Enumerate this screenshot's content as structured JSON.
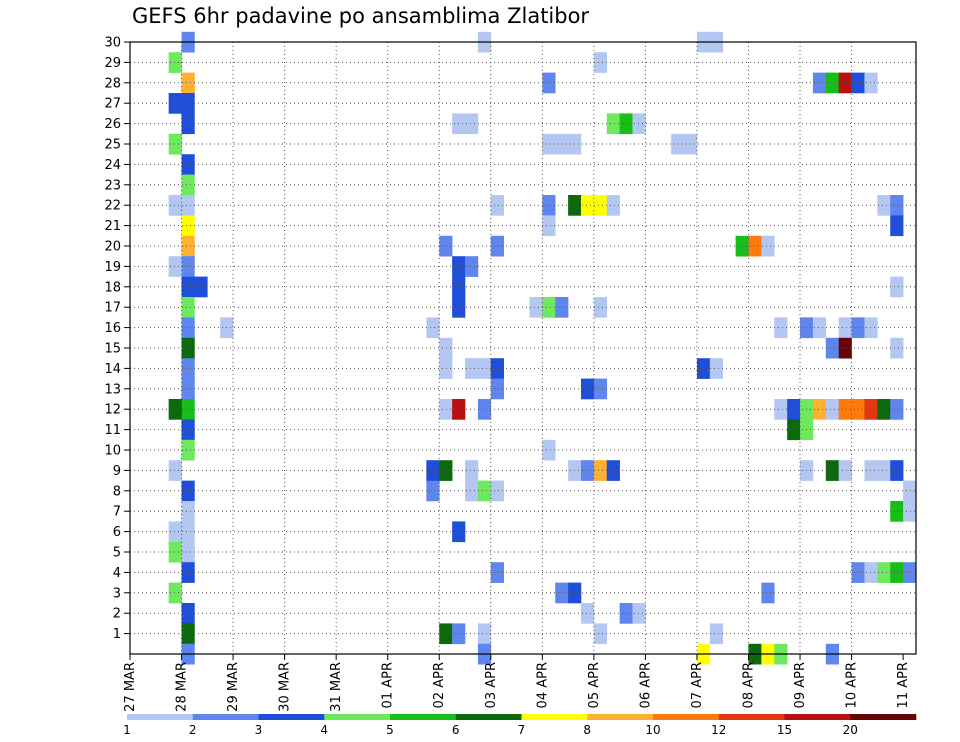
{
  "chart_data": {
    "type": "heatmap",
    "title": "GEFS 6hr padavine po ansamblima Zlatibor",
    "x_ticks": [
      "27 MAR",
      "28 MAR",
      "29 MAR",
      "30 MAR",
      "31 MAR",
      "01 APR",
      "02 APR",
      "03 APR",
      "04 APR",
      "05 APR",
      "06 APR",
      "07 APR",
      "08 APR",
      "09 APR",
      "10 APR",
      "11 APR"
    ],
    "x_range": [
      0,
      61
    ],
    "x_unit": "6-hour steps from 27 MAR 00Z",
    "y_ticks": [
      "1",
      "2",
      "3",
      "4",
      "5",
      "6",
      "7",
      "8",
      "9",
      "10",
      "11",
      "12",
      "13",
      "14",
      "15",
      "16",
      "17",
      "18",
      "19",
      "20",
      "21",
      "22",
      "23",
      "24",
      "25",
      "26",
      "27",
      "28",
      "29",
      "30"
    ],
    "y_range": [
      0,
      30
    ],
    "grid": true,
    "colorbar": {
      "labels": [
        "1",
        "2",
        "3",
        "4",
        "5",
        "6",
        "7",
        "8",
        "10",
        "12",
        "15",
        "20"
      ],
      "colors": [
        "#b4c6f2",
        "#5f86ee",
        "#1f4fd9",
        "#6ee85c",
        "#18be18",
        "#0c6a0c",
        "#ffff00",
        "#ffb030",
        "#ff7a0a",
        "#e23712",
        "#b8100f",
        "#650505"
      ]
    },
    "cells": [
      [
        4,
        30,
        1
      ],
      [
        4,
        28,
        7
      ],
      [
        4,
        27,
        2
      ],
      [
        4,
        26,
        2
      ],
      [
        4,
        24,
        2
      ],
      [
        4,
        23,
        3
      ],
      [
        4,
        22,
        0
      ],
      [
        4,
        21,
        6
      ],
      [
        4,
        20,
        7
      ],
      [
        4,
        19,
        1
      ],
      [
        4,
        18,
        2
      ],
      [
        4,
        17,
        3
      ],
      [
        4,
        16,
        1
      ],
      [
        4,
        15,
        5
      ],
      [
        4,
        14,
        1
      ],
      [
        4,
        13,
        1
      ],
      [
        4,
        12,
        4
      ],
      [
        4,
        11,
        2
      ],
      [
        4,
        10,
        3
      ],
      [
        4,
        8,
        2
      ],
      [
        4,
        7,
        0
      ],
      [
        4,
        6,
        0
      ],
      [
        4,
        5,
        0
      ],
      [
        4,
        4,
        2
      ],
      [
        4,
        2,
        2
      ],
      [
        4,
        1,
        5
      ],
      [
        4,
        0,
        1
      ],
      [
        3,
        29,
        3
      ],
      [
        3,
        27,
        2
      ],
      [
        3,
        25,
        3
      ],
      [
        3,
        22,
        0
      ],
      [
        3,
        19,
        0
      ],
      [
        3,
        12,
        5
      ],
      [
        3,
        9,
        0
      ],
      [
        3,
        6,
        0
      ],
      [
        3,
        5,
        3
      ],
      [
        3,
        3,
        3
      ],
      [
        5,
        18,
        2
      ],
      [
        7,
        16,
        0
      ],
      [
        23,
        16,
        0
      ],
      [
        23,
        8,
        1
      ],
      [
        23,
        9,
        2
      ],
      [
        24,
        15,
        0
      ],
      [
        24,
        14,
        0
      ],
      [
        24,
        12,
        0
      ],
      [
        24,
        20,
        1
      ],
      [
        24,
        9,
        5
      ],
      [
        24,
        1,
        5
      ],
      [
        25,
        26,
        0
      ],
      [
        25,
        19,
        2
      ],
      [
        25,
        18,
        2
      ],
      [
        25,
        17,
        2
      ],
      [
        25,
        12,
        10
      ],
      [
        25,
        6,
        2
      ],
      [
        25,
        1,
        1
      ],
      [
        26,
        26,
        0
      ],
      [
        26,
        19,
        1
      ],
      [
        26,
        14,
        0
      ],
      [
        26,
        9,
        0
      ],
      [
        26,
        8,
        0
      ],
      [
        27,
        30,
        0
      ],
      [
        27,
        14,
        0
      ],
      [
        27,
        12,
        1
      ],
      [
        27,
        8,
        3
      ],
      [
        27,
        1,
        0
      ],
      [
        27,
        0,
        1
      ],
      [
        28,
        22,
        0
      ],
      [
        28,
        20,
        1
      ],
      [
        28,
        14,
        2
      ],
      [
        28,
        13,
        1
      ],
      [
        28,
        8,
        0
      ],
      [
        28,
        4,
        1
      ],
      [
        31,
        17,
        0
      ],
      [
        32,
        28,
        1
      ],
      [
        32,
        25,
        0
      ],
      [
        32,
        22,
        1
      ],
      [
        32,
        21,
        0
      ],
      [
        32,
        17,
        3
      ],
      [
        32,
        10,
        0
      ],
      [
        33,
        25,
        0
      ],
      [
        33,
        17,
        1
      ],
      [
        33,
        3,
        1
      ],
      [
        34,
        25,
        0
      ],
      [
        34,
        22,
        5
      ],
      [
        34,
        9,
        0
      ],
      [
        34,
        3,
        2
      ],
      [
        35,
        22,
        6
      ],
      [
        35,
        13,
        2
      ],
      [
        35,
        9,
        1
      ],
      [
        35,
        2,
        0
      ],
      [
        36,
        29,
        0
      ],
      [
        36,
        22,
        6
      ],
      [
        36,
        17,
        0
      ],
      [
        36,
        13,
        1
      ],
      [
        36,
        9,
        7
      ],
      [
        36,
        1,
        0
      ],
      [
        37,
        26,
        3
      ],
      [
        37,
        22,
        0
      ],
      [
        37,
        9,
        2
      ],
      [
        38,
        26,
        4
      ],
      [
        38,
        2,
        1
      ],
      [
        39,
        26,
        0
      ],
      [
        39,
        2,
        0
      ],
      [
        42,
        25,
        0
      ],
      [
        43,
        25,
        0
      ],
      [
        44,
        30,
        0
      ],
      [
        44,
        14,
        2
      ],
      [
        44,
        0,
        6
      ],
      [
        45,
        30,
        0
      ],
      [
        45,
        14,
        0
      ],
      [
        45,
        1,
        0
      ],
      [
        47,
        20,
        4
      ],
      [
        48,
        20,
        8
      ],
      [
        49,
        20,
        0
      ],
      [
        49,
        3,
        1
      ],
      [
        48,
        0,
        5
      ],
      [
        49,
        0,
        6
      ],
      [
        50,
        0,
        3
      ],
      [
        50,
        16,
        0
      ],
      [
        50,
        12,
        0
      ],
      [
        51,
        12,
        2
      ],
      [
        51,
        11,
        5
      ],
      [
        52,
        16,
        1
      ],
      [
        52,
        12,
        3
      ],
      [
        52,
        11,
        3
      ],
      [
        52,
        9,
        0
      ],
      [
        53,
        28,
        1
      ],
      [
        53,
        16,
        0
      ],
      [
        53,
        12,
        7
      ],
      [
        54,
        28,
        4
      ],
      [
        54,
        15,
        1
      ],
      [
        54,
        12,
        0
      ],
      [
        54,
        9,
        5
      ],
      [
        54,
        0,
        1
      ],
      [
        55,
        28,
        10
      ],
      [
        55,
        16,
        0
      ],
      [
        55,
        15,
        11
      ],
      [
        55,
        12,
        8
      ],
      [
        55,
        9,
        0
      ],
      [
        56,
        28,
        2
      ],
      [
        56,
        16,
        1
      ],
      [
        56,
        12,
        8
      ],
      [
        56,
        4,
        1
      ],
      [
        57,
        28,
        0
      ],
      [
        57,
        16,
        0
      ],
      [
        57,
        12,
        9
      ],
      [
        57,
        9,
        0
      ],
      [
        57,
        4,
        0
      ],
      [
        58,
        22,
        0
      ],
      [
        58,
        12,
        5
      ],
      [
        58,
        9,
        0
      ],
      [
        58,
        4,
        3
      ],
      [
        59,
        22,
        1
      ],
      [
        59,
        21,
        2
      ],
      [
        59,
        18,
        0
      ],
      [
        59,
        15,
        0
      ],
      [
        59,
        12,
        1
      ],
      [
        59,
        9,
        2
      ],
      [
        59,
        7,
        4
      ],
      [
        59,
        4,
        4
      ],
      [
        60,
        8,
        0
      ],
      [
        60,
        7,
        0
      ],
      [
        60,
        4,
        1
      ]
    ]
  }
}
